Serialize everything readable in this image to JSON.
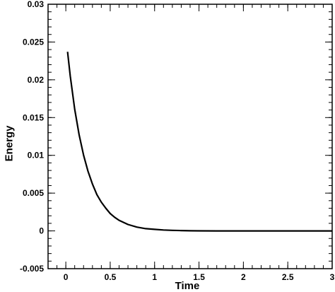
{
  "chart_data": {
    "type": "line",
    "title": "",
    "xlabel": "Time",
    "ylabel": "Energy",
    "xlim": [
      -0.2,
      3
    ],
    "ylim": [
      -0.005,
      0.03
    ],
    "grid": false,
    "legend": "none",
    "x_ticks": [
      {
        "value": 0,
        "label": "0"
      },
      {
        "value": 0.5,
        "label": "0.5"
      },
      {
        "value": 1,
        "label": "1"
      },
      {
        "value": 1.5,
        "label": "1.5"
      },
      {
        "value": 2,
        "label": "2"
      },
      {
        "value": 2.5,
        "label": "2.5"
      },
      {
        "value": 3,
        "label": "3"
      }
    ],
    "x_minor_step": 0.1,
    "y_ticks": [
      {
        "value": -0.005,
        "label": "-0.005"
      },
      {
        "value": 0,
        "label": "0"
      },
      {
        "value": 0.005,
        "label": "0.005"
      },
      {
        "value": 0.01,
        "label": "0.01"
      },
      {
        "value": 0.015,
        "label": "0.015"
      },
      {
        "value": 0.02,
        "label": "0.02"
      },
      {
        "value": 0.025,
        "label": "0.025"
      },
      {
        "value": 0.03,
        "label": "0.03"
      }
    ],
    "y_minor_step": 0.001,
    "line_color": "#000000",
    "series": [
      {
        "x": [
          0.02,
          0.05,
          0.1,
          0.15,
          0.2,
          0.25,
          0.3,
          0.35,
          0.4,
          0.45,
          0.5,
          0.55,
          0.6,
          0.7,
          0.8,
          0.9,
          1.0,
          1.1,
          1.2,
          1.3,
          1.4,
          1.5,
          1.7,
          2.0,
          2.5,
          3.0
        ],
        "y": [
          0.0237,
          0.0205,
          0.0161,
          0.0127,
          0.01,
          0.0079,
          0.0062,
          0.0048,
          0.0038,
          0.003,
          0.0023,
          0.0018,
          0.0014,
          0.00085,
          0.0005,
          0.0003,
          0.0002,
          0.00012,
          7e-05,
          4e-05,
          2e-05,
          1e-05,
          0.0,
          0.0,
          0.0,
          0.0
        ]
      }
    ]
  }
}
